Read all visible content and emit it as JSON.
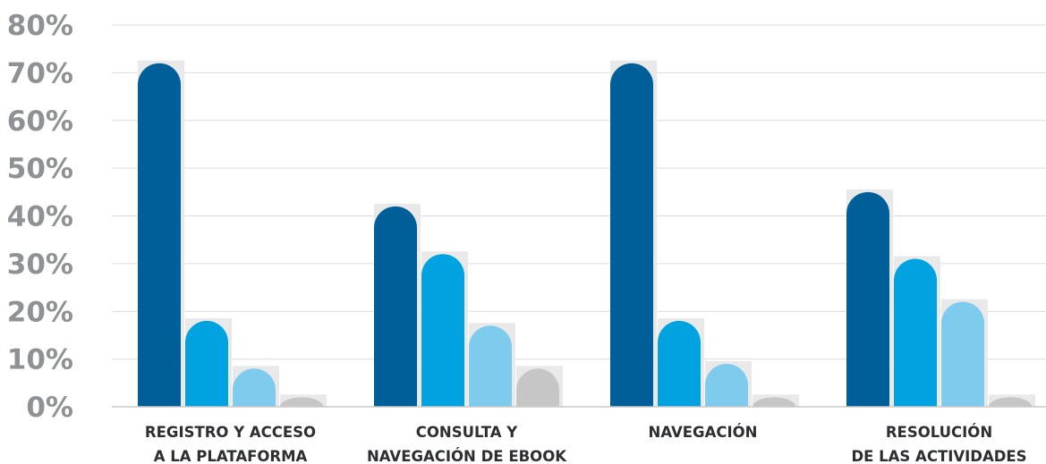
{
  "chart_data": {
    "type": "bar",
    "categories": [
      [
        "REGISTRO Y ACCESO",
        "A LA PLATAFORMA"
      ],
      [
        "CONSULTA Y",
        "NAVEGACIÓN DE EBOOK"
      ],
      [
        "NAVEGACIÓN"
      ],
      [
        "RESOLUCIÓN",
        "DE LAS ACTIVIDADES"
      ]
    ],
    "series": [
      {
        "color": "#005f99",
        "values": [
          72,
          42,
          72,
          45
        ]
      },
      {
        "color": "#00a3e0",
        "values": [
          18,
          32,
          18,
          31
        ]
      },
      {
        "color": "#7fcbee",
        "values": [
          8,
          17,
          9,
          22
        ]
      },
      {
        "color": "#c6c6c6",
        "values": [
          2,
          8,
          2,
          2
        ]
      }
    ],
    "ylim": [
      0,
      80
    ],
    "yticks": [
      "0%",
      "10%",
      "20%",
      "30%",
      "40%",
      "50%",
      "60%",
      "70%",
      "80%"
    ],
    "ytick_values": [
      0,
      10,
      20,
      30,
      40,
      50,
      60,
      70,
      80
    ],
    "grid": true,
    "legend": "none",
    "title": "",
    "xlabel": "",
    "ylabel": ""
  }
}
